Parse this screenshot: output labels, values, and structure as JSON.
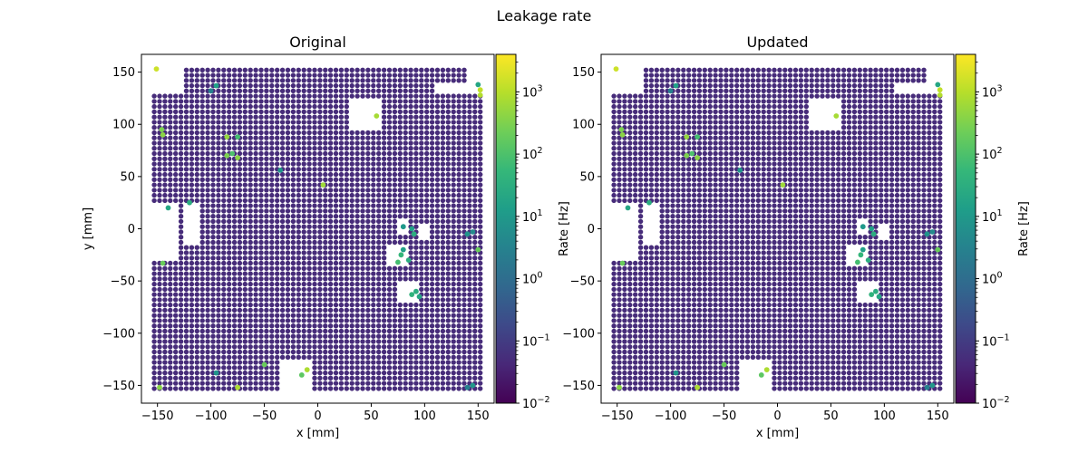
{
  "figure": {
    "suptitle": "Leakage rate"
  },
  "colormap": {
    "name": "viridis",
    "stops": [
      "#440154",
      "#482878",
      "#3e4989",
      "#31688e",
      "#26828e",
      "#1f9e89",
      "#35b779",
      "#6ece58",
      "#b5de2b",
      "#fde725"
    ]
  },
  "chart_data": [
    {
      "type": "scatter",
      "title": "Original",
      "xlabel": "x [mm]",
      "ylabel": "y [mm]",
      "xlim": [
        -165,
        165
      ],
      "ylim": [
        -167,
        167
      ],
      "xticks": [
        -150,
        -100,
        -50,
        0,
        50,
        100,
        150
      ],
      "yticks": [
        -150,
        -100,
        -50,
        0,
        50,
        100,
        150
      ],
      "grid": {
        "pitch_mm": 5,
        "x_range": [
          -153,
          153
        ],
        "y_range": [
          -153,
          153
        ]
      },
      "base_rate_hz": 0.05,
      "colorbar": {
        "label": "Rate [Hz]",
        "scale": "log",
        "range": [
          0.01,
          4000
        ],
        "ticks": [
          "10^-2",
          "10^-1",
          "10^0",
          "10^1",
          "10^2",
          "10^3"
        ]
      },
      "holes": [
        {
          "x": [
            -153,
            -125
          ],
          "y": [
            128,
            153
          ]
        },
        {
          "x": [
            140,
            153
          ],
          "y": [
            128,
            153
          ]
        },
        {
          "x": [
            108,
            153
          ],
          "y": [
            128,
            140
          ]
        },
        {
          "x": [
            -153,
            -130
          ],
          "y": [
            -30,
            25
          ]
        },
        {
          "x": [
            -125,
            -110
          ],
          "y": [
            -15,
            25
          ]
        },
        {
          "x": [
            30,
            60
          ],
          "y": [
            95,
            125
          ]
        },
        {
          "x": [
            -35,
            -5
          ],
          "y": [
            -153,
            -125
          ]
        },
        {
          "x": [
            65,
            85
          ],
          "y": [
            -35,
            -15
          ]
        },
        {
          "x": [
            75,
            95
          ],
          "y": [
            -70,
            -50
          ]
        },
        {
          "x": [
            75,
            85
          ],
          "y": [
            -5,
            10
          ]
        },
        {
          "x": [
            95,
            103
          ],
          "y": [
            -10,
            5
          ]
        }
      ],
      "hot_points": [
        {
          "x": -151,
          "y": 153,
          "rate": 1500
        },
        {
          "x": -95,
          "y": 137,
          "rate": 15
        },
        {
          "x": -100,
          "y": 132,
          "rate": 3
        },
        {
          "x": -146,
          "y": 95,
          "rate": 300
        },
        {
          "x": -145,
          "y": 90,
          "rate": 400
        },
        {
          "x": -85,
          "y": 88,
          "rate": 500
        },
        {
          "x": -75,
          "y": 88,
          "rate": 80
        },
        {
          "x": -85,
          "y": 70,
          "rate": 300
        },
        {
          "x": -80,
          "y": 72,
          "rate": 100
        },
        {
          "x": -75,
          "y": 68,
          "rate": 400
        },
        {
          "x": -35,
          "y": 56,
          "rate": 8
        },
        {
          "x": 5,
          "y": 42,
          "rate": 600
        },
        {
          "x": 55,
          "y": 108,
          "rate": 700
        },
        {
          "x": 150,
          "y": 138,
          "rate": 20
        },
        {
          "x": 152,
          "y": 133,
          "rate": 1200
        },
        {
          "x": 152,
          "y": 128,
          "rate": 900
        },
        {
          "x": -120,
          "y": 25,
          "rate": 30
        },
        {
          "x": -140,
          "y": 20,
          "rate": 20
        },
        {
          "x": -145,
          "y": -33,
          "rate": 200
        },
        {
          "x": 80,
          "y": 2,
          "rate": 10
        },
        {
          "x": 88,
          "y": 0,
          "rate": 15
        },
        {
          "x": 90,
          "y": -5,
          "rate": 30
        },
        {
          "x": 80,
          "y": -20,
          "rate": 15
        },
        {
          "x": 78,
          "y": -25,
          "rate": 50
        },
        {
          "x": 75,
          "y": -32,
          "rate": 80
        },
        {
          "x": 85,
          "y": -30,
          "rate": 30
        },
        {
          "x": 88,
          "y": -63,
          "rate": 40
        },
        {
          "x": 92,
          "y": -60,
          "rate": 30
        },
        {
          "x": 95,
          "y": -65,
          "rate": 20
        },
        {
          "x": 140,
          "y": -5,
          "rate": 8
        },
        {
          "x": 145,
          "y": -3,
          "rate": 5
        },
        {
          "x": 150,
          "y": -20,
          "rate": 200
        },
        {
          "x": -50,
          "y": -130,
          "rate": 200
        },
        {
          "x": -15,
          "y": -140,
          "rate": 150
        },
        {
          "x": -10,
          "y": -135,
          "rate": 800
        },
        {
          "x": -75,
          "y": -152,
          "rate": 800
        },
        {
          "x": -148,
          "y": -152,
          "rate": 400
        },
        {
          "x": -95,
          "y": -138,
          "rate": 8
        },
        {
          "x": 140,
          "y": -152,
          "rate": 3
        },
        {
          "x": 145,
          "y": -150,
          "rate": 10
        }
      ]
    },
    {
      "type": "scatter",
      "title": "Updated",
      "xlabel": "x [mm]",
      "ylabel": "",
      "xlim": [
        -165,
        165
      ],
      "ylim": [
        -167,
        167
      ],
      "xticks": [
        -150,
        -100,
        -50,
        0,
        50,
        100,
        150
      ],
      "yticks": [
        -150,
        -100,
        -50,
        0,
        50,
        100,
        150
      ],
      "grid": {
        "pitch_mm": 5,
        "x_range": [
          -153,
          153
        ],
        "y_range": [
          -153,
          153
        ]
      },
      "base_rate_hz": 0.05,
      "colorbar": {
        "label": "Rate [Hz]",
        "scale": "log",
        "range": [
          0.01,
          4000
        ],
        "ticks": [
          "10^-2",
          "10^-1",
          "10^0",
          "10^1",
          "10^2",
          "10^3"
        ]
      },
      "holes": [
        {
          "x": [
            -153,
            -125
          ],
          "y": [
            128,
            153
          ]
        },
        {
          "x": [
            140,
            153
          ],
          "y": [
            128,
            153
          ]
        },
        {
          "x": [
            108,
            153
          ],
          "y": [
            128,
            140
          ]
        },
        {
          "x": [
            -153,
            -130
          ],
          "y": [
            -30,
            25
          ]
        },
        {
          "x": [
            -125,
            -110
          ],
          "y": [
            -15,
            25
          ]
        },
        {
          "x": [
            30,
            60
          ],
          "y": [
            95,
            125
          ]
        },
        {
          "x": [
            -35,
            -5
          ],
          "y": [
            -153,
            -125
          ]
        },
        {
          "x": [
            65,
            85
          ],
          "y": [
            -35,
            -15
          ]
        },
        {
          "x": [
            75,
            95
          ],
          "y": [
            -70,
            -50
          ]
        },
        {
          "x": [
            75,
            85
          ],
          "y": [
            -5,
            10
          ]
        },
        {
          "x": [
            95,
            103
          ],
          "y": [
            -10,
            5
          ]
        }
      ],
      "hot_points": [
        {
          "x": -151,
          "y": 153,
          "rate": 1500
        },
        {
          "x": -95,
          "y": 137,
          "rate": 15
        },
        {
          "x": -100,
          "y": 132,
          "rate": 3
        },
        {
          "x": -146,
          "y": 95,
          "rate": 300
        },
        {
          "x": -145,
          "y": 90,
          "rate": 400
        },
        {
          "x": -85,
          "y": 88,
          "rate": 500
        },
        {
          "x": -75,
          "y": 88,
          "rate": 80
        },
        {
          "x": -85,
          "y": 70,
          "rate": 300
        },
        {
          "x": -80,
          "y": 72,
          "rate": 100
        },
        {
          "x": -75,
          "y": 68,
          "rate": 400
        },
        {
          "x": -35,
          "y": 56,
          "rate": 8
        },
        {
          "x": 5,
          "y": 42,
          "rate": 600
        },
        {
          "x": 55,
          "y": 108,
          "rate": 700
        },
        {
          "x": 150,
          "y": 138,
          "rate": 20
        },
        {
          "x": 152,
          "y": 133,
          "rate": 1200
        },
        {
          "x": 152,
          "y": 128,
          "rate": 900
        },
        {
          "x": -120,
          "y": 25,
          "rate": 30
        },
        {
          "x": -140,
          "y": 20,
          "rate": 20
        },
        {
          "x": -145,
          "y": -33,
          "rate": 200
        },
        {
          "x": 80,
          "y": 2,
          "rate": 10
        },
        {
          "x": 88,
          "y": 0,
          "rate": 15
        },
        {
          "x": 90,
          "y": -5,
          "rate": 30
        },
        {
          "x": 80,
          "y": -20,
          "rate": 15
        },
        {
          "x": 78,
          "y": -25,
          "rate": 50
        },
        {
          "x": 75,
          "y": -32,
          "rate": 80
        },
        {
          "x": 85,
          "y": -30,
          "rate": 30
        },
        {
          "x": 88,
          "y": -63,
          "rate": 40
        },
        {
          "x": 92,
          "y": -60,
          "rate": 30
        },
        {
          "x": 95,
          "y": -65,
          "rate": 20
        },
        {
          "x": 140,
          "y": -5,
          "rate": 8
        },
        {
          "x": 145,
          "y": -3,
          "rate": 5
        },
        {
          "x": 150,
          "y": -20,
          "rate": 200
        },
        {
          "x": -50,
          "y": -130,
          "rate": 200
        },
        {
          "x": -15,
          "y": -140,
          "rate": 150
        },
        {
          "x": -10,
          "y": -135,
          "rate": 800
        },
        {
          "x": -75,
          "y": -152,
          "rate": 800
        },
        {
          "x": -148,
          "y": -152,
          "rate": 400
        },
        {
          "x": -95,
          "y": -138,
          "rate": 8
        },
        {
          "x": 140,
          "y": -152,
          "rate": 3
        },
        {
          "x": 145,
          "y": -150,
          "rate": 10
        }
      ]
    }
  ]
}
